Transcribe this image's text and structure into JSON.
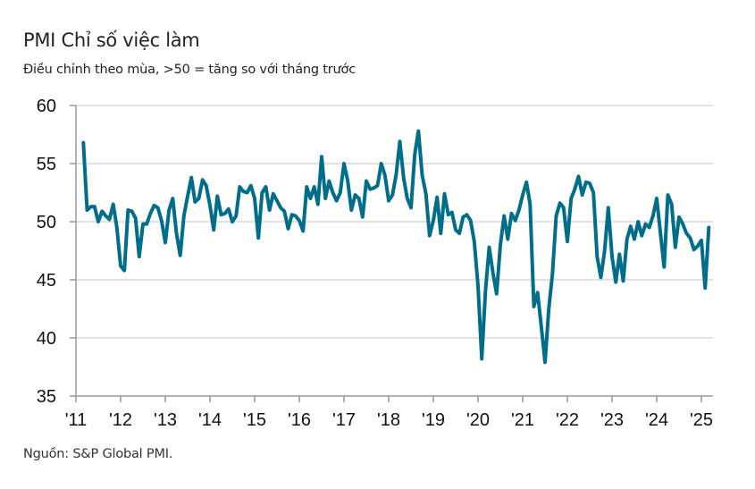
{
  "chart_data": {
    "type": "line",
    "title": "PMI Chỉ số việc làm",
    "subtitle": "Điều chỉnh theo mùa, >50 = tăng so với tháng trước",
    "source": "Nguồn: S&P Global PMI.",
    "xlabel": "",
    "ylabel": "",
    "ylim": [
      35,
      60
    ],
    "yticks": [
      60,
      55,
      50,
      45,
      40,
      35
    ],
    "xticks": [
      "'11",
      "'12",
      "'13",
      "'14",
      "'15",
      "'16",
      "'17",
      "'18",
      "'19",
      "'20",
      "'21",
      "'22",
      "'23",
      "'24",
      "'25"
    ],
    "grid": true,
    "legend": "none",
    "line_color": "#006E8A",
    "x_start": "2011-03",
    "x_end": "2025-05",
    "series": [
      {
        "name": "PMI Chỉ số việc làm",
        "values": [
          56.8,
          51.0,
          51.3,
          51.3,
          50.0,
          50.9,
          50.5,
          50.2,
          51.5,
          49.5,
          46.2,
          45.8,
          51.0,
          50.9,
          50.3,
          47.0,
          49.8,
          49.8,
          50.7,
          51.4,
          51.2,
          50.1,
          48.2,
          51.0,
          52.0,
          49.0,
          47.1,
          50.5,
          52.2,
          53.8,
          51.7,
          52.0,
          53.6,
          53.1,
          51.4,
          49.3,
          52.2,
          50.6,
          50.7,
          51.1,
          50.0,
          50.5,
          53.0,
          52.6,
          52.5,
          53.1,
          52.0,
          48.6,
          52.5,
          53.0,
          51.0,
          52.4,
          51.8,
          51.2,
          50.9,
          49.4,
          50.6,
          50.5,
          50.1,
          49.2,
          53.0,
          52.0,
          53.0,
          51.5,
          55.6,
          52.0,
          53.5,
          52.5,
          51.8,
          52.5,
          55.0,
          53.5,
          51.0,
          52.3,
          52.0,
          50.4,
          53.5,
          52.8,
          52.9,
          53.1,
          55.0,
          54.0,
          51.8,
          52.3,
          54.0,
          56.9,
          53.8,
          52.0,
          51.2,
          55.8,
          57.8,
          54.0,
          52.4,
          48.8,
          50.1,
          52.1,
          49.0,
          52.4,
          50.6,
          50.8,
          49.3,
          49.0,
          50.4,
          50.6,
          50.1,
          48.3,
          44.5,
          38.2,
          44.0,
          47.8,
          45.6,
          43.8,
          48.0,
          50.5,
          48.5,
          50.7,
          50.1,
          51.0,
          52.3,
          53.4,
          51.5,
          42.7,
          43.9,
          41.0,
          37.9,
          42.5,
          45.5,
          50.5,
          51.6,
          51.2,
          48.3,
          52.0,
          52.8,
          53.9,
          52.3,
          53.4,
          53.3,
          52.5,
          47.0,
          45.2,
          47.5,
          51.2,
          47.0,
          44.8,
          47.2,
          44.9,
          48.5,
          49.6,
          48.5,
          50.0,
          48.8,
          49.8,
          49.5,
          50.5,
          52.0,
          49.0,
          46.1,
          52.3,
          51.5,
          47.8,
          50.4,
          49.8,
          49.0,
          48.6,
          47.6,
          47.9,
          48.4,
          44.3,
          49.5
        ]
      }
    ]
  }
}
